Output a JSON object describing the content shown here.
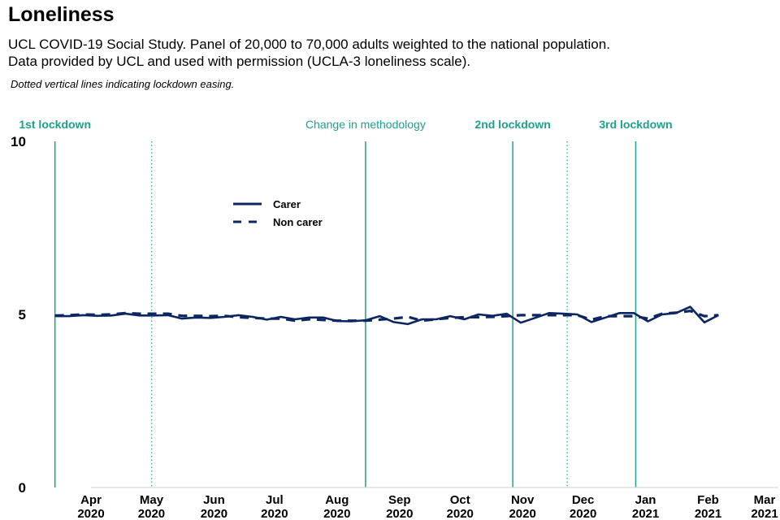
{
  "header": {
    "title": "Loneliness",
    "subtitle_line1": "UCL COVID-19 Social Study. Panel of 20,000 to 70,000 adults weighted to the national population.",
    "subtitle_line2": "Data provided by UCL and used with permission (UCLA-3 loneliness scale).",
    "note": "Dotted vertical lines indicating lockdown easing."
  },
  "chart_data": {
    "type": "line",
    "title": "Loneliness",
    "xlabel": "",
    "ylabel": "",
    "ylim": [
      0,
      10
    ],
    "yticks": [
      0,
      5,
      10
    ],
    "xlim": [
      "2020-03-10",
      "2021-03-31"
    ],
    "xticks": [
      {
        "date": "2020-04-01",
        "month": "Apr",
        "year": "2020"
      },
      {
        "date": "2020-05-01",
        "month": "May",
        "year": "2020"
      },
      {
        "date": "2020-06-01",
        "month": "Jun",
        "year": "2020"
      },
      {
        "date": "2020-07-01",
        "month": "Jul",
        "year": "2020"
      },
      {
        "date": "2020-08-01",
        "month": "Aug",
        "year": "2020"
      },
      {
        "date": "2020-09-01",
        "month": "Sep",
        "year": "2020"
      },
      {
        "date": "2020-10-01",
        "month": "Oct",
        "year": "2020"
      },
      {
        "date": "2020-11-01",
        "month": "Nov",
        "year": "2020"
      },
      {
        "date": "2020-12-01",
        "month": "Dec",
        "year": "2020"
      },
      {
        "date": "2021-01-01",
        "month": "Jan",
        "year": "2021"
      },
      {
        "date": "2021-02-01",
        "month": "Feb",
        "year": "2021"
      },
      {
        "date": "2021-03-01",
        "month": "Mar",
        "year": "2021"
      }
    ],
    "grid": false,
    "legend_position": "top-left",
    "colors": {
      "series": "#0b2660",
      "event_line": "#1fa08a",
      "axis": "#d9d9d9"
    },
    "events": [
      {
        "date": "2020-03-23",
        "label": "1st lockdown",
        "style": "solid",
        "bold": true
      },
      {
        "date": "2020-05-10",
        "label": "",
        "style": "dotted",
        "bold": false
      },
      {
        "date": "2020-08-24",
        "label": "Change in methodology",
        "style": "solid",
        "bold": false
      },
      {
        "date": "2020-11-05",
        "label": "2nd lockdown",
        "style": "solid",
        "bold": true
      },
      {
        "date": "2020-12-02",
        "label": "",
        "style": "dotted",
        "bold": false
      },
      {
        "date": "2021-01-05",
        "label": "3rd lockdown",
        "style": "solid",
        "bold": true
      }
    ],
    "series": [
      {
        "name": "Carer",
        "style": "solid",
        "points": [
          [
            "2020-03-23",
            4.95
          ],
          [
            "2020-03-30",
            4.95
          ],
          [
            "2020-04-06",
            4.98
          ],
          [
            "2020-04-13",
            4.96
          ],
          [
            "2020-04-20",
            4.97
          ],
          [
            "2020-04-27",
            5.02
          ],
          [
            "2020-05-04",
            4.97
          ],
          [
            "2020-05-11",
            4.97
          ],
          [
            "2020-05-18",
            4.98
          ],
          [
            "2020-05-25",
            4.88
          ],
          [
            "2020-06-01",
            4.91
          ],
          [
            "2020-06-08",
            4.9
          ],
          [
            "2020-06-15",
            4.93
          ],
          [
            "2020-06-22",
            4.98
          ],
          [
            "2020-06-29",
            4.93
          ],
          [
            "2020-07-06",
            4.85
          ],
          [
            "2020-07-13",
            4.93
          ],
          [
            "2020-07-20",
            4.86
          ],
          [
            "2020-07-27",
            4.91
          ],
          [
            "2020-08-03",
            4.91
          ],
          [
            "2020-08-10",
            4.81
          ],
          [
            "2020-08-17",
            4.8
          ],
          [
            "2020-08-24",
            4.83
          ],
          [
            "2020-08-31",
            4.95
          ],
          [
            "2020-09-07",
            4.78
          ],
          [
            "2020-09-14",
            4.72
          ],
          [
            "2020-09-21",
            4.86
          ],
          [
            "2020-09-28",
            4.86
          ],
          [
            "2020-10-05",
            4.95
          ],
          [
            "2020-10-12",
            4.86
          ],
          [
            "2020-10-19",
            5.0
          ],
          [
            "2020-10-26",
            4.96
          ],
          [
            "2020-11-02",
            5.02
          ],
          [
            "2020-11-09",
            4.76
          ],
          [
            "2020-11-16",
            4.9
          ],
          [
            "2020-11-23",
            5.04
          ],
          [
            "2020-11-30",
            5.02
          ],
          [
            "2020-12-07",
            5.0
          ],
          [
            "2020-12-14",
            4.78
          ],
          [
            "2020-12-21",
            4.91
          ],
          [
            "2020-12-28",
            5.04
          ],
          [
            "2021-01-04",
            5.04
          ],
          [
            "2021-01-11",
            4.8
          ],
          [
            "2021-01-18",
            5.0
          ],
          [
            "2021-01-25",
            5.04
          ],
          [
            "2021-02-01",
            5.22
          ],
          [
            "2021-02-08",
            4.77
          ],
          [
            "2021-02-15",
            4.98
          ]
        ]
      },
      {
        "name": "Non carer",
        "style": "dashed",
        "points": [
          [
            "2020-03-23",
            4.97
          ],
          [
            "2020-03-30",
            4.98
          ],
          [
            "2020-04-06",
            5.0
          ],
          [
            "2020-04-13",
            4.99
          ],
          [
            "2020-04-20",
            5.0
          ],
          [
            "2020-04-27",
            5.04
          ],
          [
            "2020-05-04",
            5.02
          ],
          [
            "2020-05-11",
            5.02
          ],
          [
            "2020-05-18",
            5.02
          ],
          [
            "2020-05-25",
            4.96
          ],
          [
            "2020-06-01",
            4.96
          ],
          [
            "2020-06-08",
            4.95
          ],
          [
            "2020-06-15",
            4.96
          ],
          [
            "2020-06-22",
            4.92
          ],
          [
            "2020-06-29",
            4.9
          ],
          [
            "2020-07-06",
            4.88
          ],
          [
            "2020-07-13",
            4.88
          ],
          [
            "2020-07-20",
            4.82
          ],
          [
            "2020-07-27",
            4.86
          ],
          [
            "2020-08-03",
            4.84
          ],
          [
            "2020-08-10",
            4.82
          ],
          [
            "2020-08-17",
            4.82
          ],
          [
            "2020-08-24",
            4.82
          ],
          [
            "2020-08-31",
            4.85
          ],
          [
            "2020-09-07",
            4.88
          ],
          [
            "2020-09-14",
            4.93
          ],
          [
            "2020-09-21",
            4.82
          ],
          [
            "2020-09-28",
            4.86
          ],
          [
            "2020-10-05",
            4.9
          ],
          [
            "2020-10-12",
            4.92
          ],
          [
            "2020-10-19",
            4.92
          ],
          [
            "2020-10-26",
            4.93
          ],
          [
            "2020-11-02",
            4.95
          ],
          [
            "2020-11-09",
            4.98
          ],
          [
            "2020-11-16",
            4.98
          ],
          [
            "2020-11-23",
            4.98
          ],
          [
            "2020-11-30",
            4.98
          ],
          [
            "2020-12-07",
            4.98
          ],
          [
            "2020-12-14",
            4.85
          ],
          [
            "2020-12-21",
            4.95
          ],
          [
            "2020-12-28",
            4.95
          ],
          [
            "2021-01-04",
            4.95
          ],
          [
            "2021-01-11",
            4.88
          ],
          [
            "2021-01-18",
            5.02
          ],
          [
            "2021-01-25",
            5.05
          ],
          [
            "2021-02-01",
            5.1
          ],
          [
            "2021-02-08",
            4.95
          ],
          [
            "2021-02-15",
            4.98
          ]
        ]
      }
    ]
  }
}
